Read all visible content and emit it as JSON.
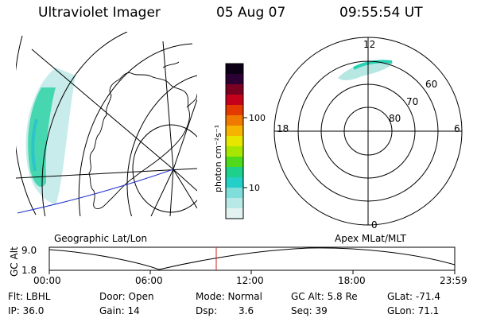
{
  "header": {
    "title": "Ultraviolet Imager",
    "date": "05 Aug 07",
    "time": "09:55:54 UT"
  },
  "left_map": {
    "caption": "Geographic Lat/Lon"
  },
  "right_map": {
    "caption": "Apex MLat/MLT",
    "mlt_labels": {
      "top": "12",
      "left": "18",
      "right": "6",
      "bottom": "0"
    },
    "mlat_labels": [
      "60",
      "70",
      "80"
    ]
  },
  "colorbar": {
    "unit_label": "photon cm⁻²s⁻¹",
    "ticks": [
      "100",
      "10"
    ],
    "colors": [
      "#0d0016",
      "#2b0033",
      "#7a0022",
      "#c4001a",
      "#e33a00",
      "#f07a00",
      "#f5b400",
      "#e6e600",
      "#a6e600",
      "#4ed91a",
      "#1fcf8c",
      "#24cfc7",
      "#7fded9",
      "#b8e9e6",
      "#e2f2f1"
    ]
  },
  "alt_plot": {
    "ylabel": "GC Alt",
    "yticks": [
      "9.0",
      "1.8"
    ],
    "xticks": [
      "00:00",
      "06:00",
      "12:00",
      "18:00",
      "23:59"
    ],
    "current_time_marker": "09:55:54"
  },
  "info": {
    "row1": {
      "flt": "Flt: LBHL",
      "door": "Door: Open",
      "mode": "Mode: Normal",
      "gc_alt": "GC Alt: 5.8 Re",
      "glat": "GLat: -71.4"
    },
    "row2": {
      "ip": "IP: 36.0",
      "gain": "Gain: 14",
      "dsp_label": "Dsp:",
      "dsp_value": "3.6",
      "seq": "Seq: 39",
      "glon": "GLon: 71.1"
    }
  }
}
